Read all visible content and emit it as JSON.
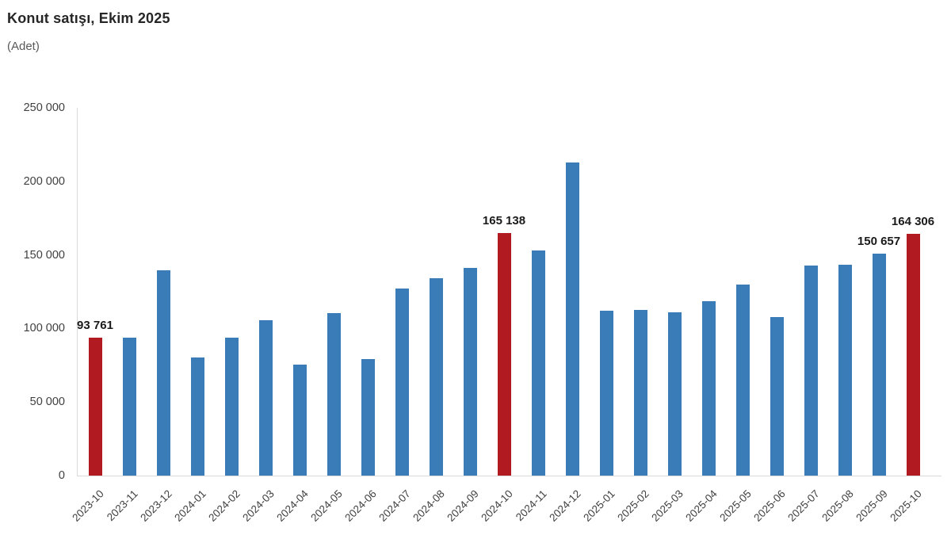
{
  "title": "Konut satışı, Ekim 2025",
  "subtitle": "(Adet)",
  "colors": {
    "bar_default": "#3A7CB8",
    "bar_highlight": "#B11A21",
    "axis_line": "#D9D9D9",
    "tick_text": "#404040",
    "value_label_text": "#1A1A1A"
  },
  "chart_data": {
    "type": "bar",
    "title": "Konut satışı, Ekim 2025",
    "unit_label": "(Adet)",
    "xlabel": "",
    "ylabel": "Adet",
    "ylim": [
      0,
      250000
    ],
    "ytick_values": [
      0,
      50000,
      100000,
      150000,
      200000,
      250000
    ],
    "ytick_labels": [
      "0",
      "50 000",
      "100 000",
      "150 000",
      "200 000",
      "250 000"
    ],
    "grid": false,
    "legend_position": "none",
    "categories": [
      "2023-10",
      "2023-11",
      "2023-12",
      "2024-01",
      "2024-02",
      "2024-03",
      "2024-04",
      "2024-05",
      "2024-06",
      "2024-07",
      "2024-08",
      "2024-09",
      "2024-10",
      "2024-11",
      "2024-12",
      "2025-01",
      "2025-02",
      "2025-03",
      "2025-04",
      "2025-05",
      "2025-06",
      "2025-07",
      "2025-08",
      "2025-09",
      "2025-10"
    ],
    "values": [
      93761,
      93514,
      139500,
      80308,
      93902,
      105476,
      75569,
      110588,
      79313,
      127088,
      134155,
      140919,
      165138,
      153014,
      212637,
      112173,
      112818,
      110795,
      118359,
      130025,
      107723,
      142858,
      143319,
      150657,
      164306
    ],
    "highlighted_categories": [
      "2023-10",
      "2024-10",
      "2025-10"
    ],
    "data_labels": [
      {
        "category": "2023-10",
        "text": "93 761"
      },
      {
        "category": "2024-10",
        "text": "165 138"
      },
      {
        "category": "2025-09",
        "text": "150 657"
      },
      {
        "category": "2025-10",
        "text": "164 306"
      }
    ]
  }
}
